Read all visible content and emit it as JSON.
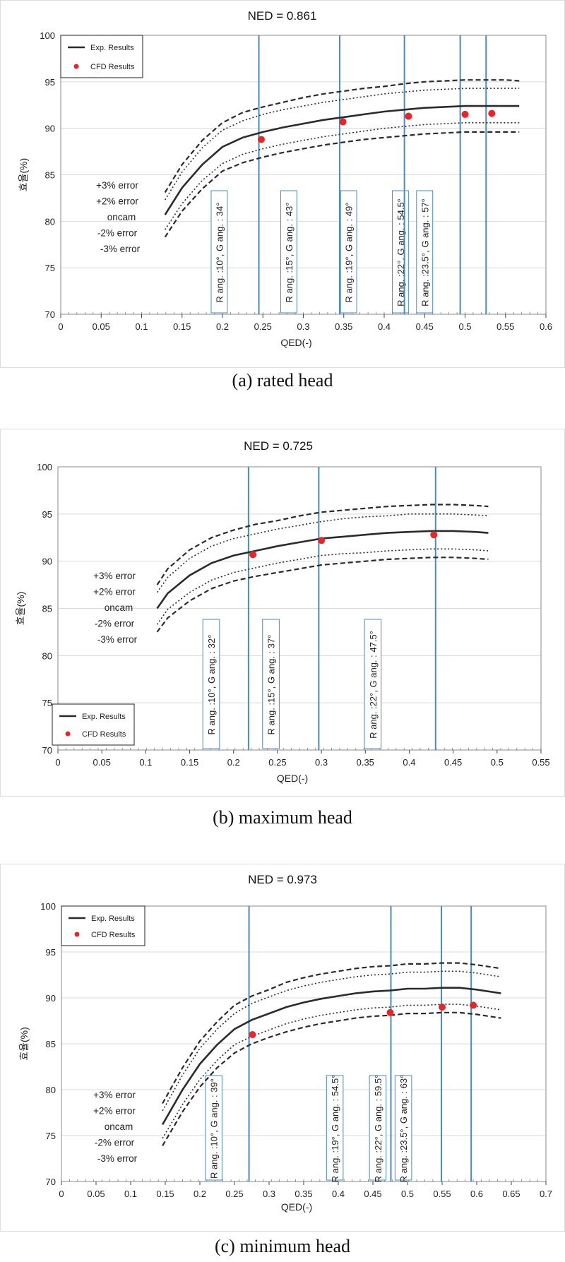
{
  "chart_data": [
    {
      "type": "line",
      "title": "NED = 0.861",
      "xlabel": "QED(-)",
      "ylabel": "효율(%)",
      "xlim": [
        0,
        0.6
      ],
      "ylim": [
        70,
        100
      ],
      "xticks": [
        "0",
        "0.05",
        "0.1",
        "0.15",
        "0.2",
        "0.25",
        "0.3",
        "0.35",
        "0.4",
        "0.45",
        "0.5",
        "0.55",
        "0.6"
      ],
      "yticks": [
        "70",
        "75",
        "80",
        "85",
        "90",
        "95",
        "100"
      ],
      "caption": "(a)  rated  head",
      "legend": {
        "placement": "top-left",
        "entries": [
          "Exp. Results",
          "CFD Results"
        ]
      },
      "error_labels": [
        "+3% error",
        "+2% error",
        "oncam",
        "-2% error",
        "-3% error"
      ],
      "x": [
        0.129,
        0.15,
        0.175,
        0.2,
        0.225,
        0.25,
        0.275,
        0.3,
        0.325,
        0.35,
        0.375,
        0.4,
        0.425,
        0.45,
        0.475,
        0.5,
        0.525,
        0.55,
        0.567
      ],
      "series": [
        {
          "name": "Exp. Results",
          "style": "solid",
          "values": [
            80.7,
            83.6,
            86.1,
            88.0,
            89.0,
            89.6,
            90.1,
            90.5,
            90.9,
            91.2,
            91.5,
            91.8,
            92.0,
            92.2,
            92.3,
            92.4,
            92.4,
            92.4,
            92.4
          ]
        },
        {
          "style": "dotted",
          "values": [
            82.3,
            85.3,
            87.9,
            89.8,
            90.8,
            91.5,
            92.0,
            92.4,
            92.8,
            93.1,
            93.4,
            93.7,
            93.9,
            94.1,
            94.2,
            94.3,
            94.3,
            94.3,
            94.3
          ]
        },
        {
          "style": "dashed",
          "values": [
            83.1,
            86.1,
            88.7,
            90.6,
            91.7,
            92.3,
            92.8,
            93.3,
            93.7,
            94.0,
            94.3,
            94.5,
            94.8,
            95.0,
            95.1,
            95.2,
            95.2,
            95.2,
            95.1
          ]
        },
        {
          "style": "dotted",
          "values": [
            79.1,
            81.9,
            84.4,
            86.2,
            87.2,
            87.8,
            88.3,
            88.7,
            89.1,
            89.4,
            89.7,
            90.0,
            90.2,
            90.4,
            90.5,
            90.6,
            90.6,
            90.6,
            90.6
          ]
        },
        {
          "style": "dashed",
          "values": [
            78.3,
            81.1,
            83.5,
            85.4,
            86.3,
            86.9,
            87.4,
            87.8,
            88.2,
            88.5,
            88.8,
            89.0,
            89.2,
            89.4,
            89.5,
            89.6,
            89.6,
            89.6,
            89.6
          ]
        }
      ],
      "cfd_points": [
        {
          "x": 0.248,
          "y": 88.8
        },
        {
          "x": 0.349,
          "y": 90.7
        },
        {
          "x": 0.43,
          "y": 91.3
        },
        {
          "x": 0.5,
          "y": 91.5
        },
        {
          "x": 0.533,
          "y": 91.6
        }
      ],
      "vlines": [
        0.245,
        0.345,
        0.425,
        0.494,
        0.526
      ],
      "annotations": [
        {
          "text": "R ang. :10°, G ang. : 34°",
          "x0": 0.186,
          "x1": 0.206
        },
        {
          "text": "R ang. :15°, G ang. : 43°",
          "x0": 0.272,
          "x1": 0.292
        },
        {
          "text": "R ang. :19°, G ang. : 49°",
          "x0": 0.346,
          "x1": 0.366
        },
        {
          "text": "R ang. :22°, G ang. : 54.5°",
          "x0": 0.41,
          "x1": 0.43
        },
        {
          "text": "R ang. :23.5°, G ang. : 57°",
          "x0": 0.44,
          "x1": 0.46
        }
      ]
    },
    {
      "type": "line",
      "title": "NED = 0.725",
      "xlabel": "QED(-)",
      "ylabel": "효율(%)",
      "xlim": [
        0,
        0.55
      ],
      "ylim": [
        70,
        100
      ],
      "xticks": [
        "0",
        "0.05",
        "0.1",
        "0.15",
        "0.2",
        "0.25",
        "0.3",
        "0.35",
        "0.4",
        "0.45",
        "0.5",
        "0.55"
      ],
      "yticks": [
        "70",
        "75",
        "80",
        "85",
        "90",
        "95",
        "100"
      ],
      "caption": "(b)  maximum  head",
      "legend": {
        "placement": "bottom-left",
        "entries": [
          "Exp. Results",
          "CFD Results"
        ]
      },
      "error_labels": [
        "+3% error",
        "+2% error",
        "oncam",
        "-2% error",
        "-3% error"
      ],
      "x": [
        0.113,
        0.125,
        0.15,
        0.175,
        0.2,
        0.225,
        0.25,
        0.275,
        0.3,
        0.325,
        0.35,
        0.375,
        0.4,
        0.425,
        0.45,
        0.475,
        0.49
      ],
      "series": [
        {
          "name": "Exp. Results",
          "style": "solid",
          "values": [
            85.0,
            86.6,
            88.5,
            89.8,
            90.6,
            91.1,
            91.6,
            92.0,
            92.4,
            92.6,
            92.8,
            93.0,
            93.1,
            93.2,
            93.2,
            93.1,
            93.0
          ]
        },
        {
          "style": "dotted",
          "values": [
            86.7,
            88.3,
            90.3,
            91.6,
            92.4,
            92.9,
            93.4,
            93.8,
            94.2,
            94.5,
            94.7,
            94.8,
            95.0,
            95.0,
            95.0,
            94.9,
            94.8
          ]
        },
        {
          "style": "dashed",
          "values": [
            87.5,
            89.2,
            91.2,
            92.5,
            93.3,
            93.9,
            94.3,
            94.8,
            95.2,
            95.4,
            95.6,
            95.8,
            95.9,
            96.0,
            96.0,
            95.9,
            95.8
          ]
        },
        {
          "style": "dotted",
          "values": [
            83.3,
            84.9,
            86.7,
            88.0,
            88.8,
            89.3,
            89.8,
            90.2,
            90.6,
            90.8,
            90.9,
            91.1,
            91.2,
            91.3,
            91.3,
            91.2,
            91.1
          ]
        },
        {
          "style": "dashed",
          "values": [
            82.5,
            84.0,
            85.8,
            87.1,
            87.9,
            88.4,
            88.8,
            89.2,
            89.6,
            89.8,
            90.0,
            90.2,
            90.3,
            90.4,
            90.4,
            90.3,
            90.2
          ]
        }
      ],
      "cfd_points": [
        {
          "x": 0.222,
          "y": 90.7
        },
        {
          "x": 0.3,
          "y": 92.2
        },
        {
          "x": 0.428,
          "y": 92.8
        }
      ],
      "vlines": [
        0.217,
        0.297,
        0.43
      ],
      "annotations": [
        {
          "text": "R ang. :10°, G ang. : 32°",
          "x0": 0.165,
          "x1": 0.184
        },
        {
          "text": "R ang. :15°, G ang. : 37°",
          "x0": 0.233,
          "x1": 0.252
        },
        {
          "text": "R ang. :22°, G ang. : 47.5°",
          "x0": 0.349,
          "x1": 0.368
        }
      ]
    },
    {
      "type": "line",
      "title": "NED = 0.973",
      "xlabel": "QED(-)",
      "ylabel": "효율(%)",
      "xlim": [
        0,
        0.7
      ],
      "ylim": [
        70,
        100
      ],
      "xticks": [
        "0",
        "0.05",
        "0.1",
        "0.15",
        "0.2",
        "0.25",
        "0.3",
        "0.35",
        "0.4",
        "0.45",
        "0.5",
        "0.55",
        "0.6",
        "0.65",
        "0.7"
      ],
      "yticks": [
        "70",
        "75",
        "80",
        "85",
        "90",
        "95",
        "100"
      ],
      "caption": "(c)  minimum  head",
      "legend": {
        "placement": "top-left",
        "entries": [
          "Exp. Results",
          "CFD Results"
        ]
      },
      "error_labels": [
        "+3% error",
        "+2% error",
        "oncam",
        "-2% error",
        "-3% error"
      ],
      "x": [
        0.146,
        0.175,
        0.2,
        0.225,
        0.25,
        0.275,
        0.3,
        0.325,
        0.35,
        0.375,
        0.4,
        0.425,
        0.45,
        0.475,
        0.5,
        0.525,
        0.55,
        0.575,
        0.6,
        0.635
      ],
      "series": [
        {
          "name": "Exp. Results",
          "style": "solid",
          "values": [
            76.2,
            80.0,
            82.8,
            84.9,
            86.6,
            87.6,
            88.3,
            89.0,
            89.5,
            89.9,
            90.2,
            90.5,
            90.7,
            90.8,
            91.0,
            91.0,
            91.1,
            91.1,
            90.9,
            90.5
          ]
        },
        {
          "style": "dotted",
          "values": [
            77.7,
            81.6,
            84.5,
            86.6,
            88.3,
            89.4,
            90.1,
            90.8,
            91.3,
            91.7,
            92.0,
            92.3,
            92.5,
            92.6,
            92.8,
            92.8,
            92.9,
            92.9,
            92.7,
            92.3
          ]
        },
        {
          "style": "dashed",
          "values": [
            78.5,
            82.4,
            85.3,
            87.4,
            89.2,
            90.2,
            90.9,
            91.7,
            92.2,
            92.6,
            92.9,
            93.2,
            93.4,
            93.5,
            93.7,
            93.7,
            93.8,
            93.8,
            93.6,
            93.2
          ]
        },
        {
          "style": "dotted",
          "values": [
            74.7,
            78.4,
            81.1,
            83.2,
            84.9,
            85.8,
            86.5,
            87.2,
            87.7,
            88.1,
            88.4,
            88.7,
            88.9,
            89.0,
            89.2,
            89.2,
            89.3,
            89.3,
            89.1,
            88.7
          ]
        },
        {
          "style": "dashed",
          "values": [
            73.9,
            77.6,
            80.3,
            82.4,
            84.0,
            85.0,
            85.7,
            86.3,
            86.8,
            87.2,
            87.5,
            87.8,
            88.0,
            88.1,
            88.3,
            88.3,
            88.4,
            88.4,
            88.2,
            87.8
          ]
        }
      ],
      "cfd_points": [
        {
          "x": 0.276,
          "y": 86.0
        },
        {
          "x": 0.475,
          "y": 88.4
        },
        {
          "x": 0.55,
          "y": 89.0
        },
        {
          "x": 0.595,
          "y": 89.2
        }
      ],
      "vlines": [
        0.271,
        0.476,
        0.549,
        0.592
      ],
      "annotations": [
        {
          "text": "R ang. :10°, G ang. : 39°",
          "x0": 0.208,
          "x1": 0.232
        },
        {
          "text": "R ang. :19°, G ang. : 54.5°",
          "x0": 0.383,
          "x1": 0.407
        },
        {
          "text": "R ang. :22°, G ang. : 59.5°",
          "x0": 0.445,
          "x1": 0.469
        },
        {
          "text": "R ang. :23.5°, G ang. : 63°",
          "x0": 0.482,
          "x1": 0.506
        }
      ]
    }
  ],
  "colors": {
    "cfd": "#e8262a",
    "vline": "#4a8bbf",
    "annotation_box": "#4a8bbf",
    "curve": "#2b2b2b",
    "grid": "#d9d9d9"
  }
}
